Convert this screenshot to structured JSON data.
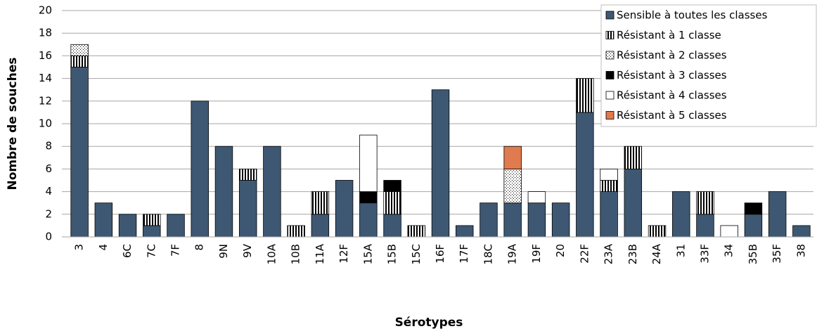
{
  "chart_data": {
    "type": "stacked_bar",
    "x_label": "Sérotypes",
    "y_label": "Nombre de souches",
    "categories": [
      "3",
      "4",
      "6C",
      "7C",
      "7F",
      "8",
      "9N",
      "9V",
      "10A",
      "10B",
      "11A",
      "12F",
      "15A",
      "15B",
      "15C",
      "16F",
      "17F",
      "18C",
      "19A",
      "19F",
      "20",
      "22F",
      "23A",
      "23B",
      "24A",
      "31",
      "33F",
      "34",
      "35B",
      "35F",
      "38"
    ],
    "series": [
      {
        "name": "Sensible à toutes les classes",
        "color": "#3e5873",
        "pattern": "solid",
        "values": [
          15,
          3,
          2,
          1,
          2,
          12,
          8,
          5,
          8,
          0,
          2,
          5,
          3,
          2,
          0,
          13,
          1,
          3,
          3,
          3,
          3,
          11,
          4,
          6,
          0,
          4,
          2,
          0,
          2,
          4,
          1
        ]
      },
      {
        "name": "Résistant à 1 classe",
        "color": "#000000",
        "pattern": "vertical-stripes",
        "values": [
          1,
          0,
          0,
          1,
          0,
          0,
          0,
          1,
          0,
          1,
          2,
          0,
          0,
          2,
          1,
          0,
          0,
          0,
          0,
          0,
          0,
          3,
          1,
          2,
          1,
          0,
          2,
          0,
          0,
          0,
          0
        ]
      },
      {
        "name": "Résistant à 2 classes",
        "color": "#000000",
        "pattern": "dots",
        "values": [
          1,
          0,
          0,
          0,
          0,
          0,
          0,
          0,
          0,
          0,
          0,
          0,
          0,
          0,
          0,
          0,
          0,
          0,
          3,
          0,
          0,
          0,
          0,
          0,
          0,
          0,
          0,
          0,
          0,
          0,
          0
        ]
      },
      {
        "name": "Résistant à 3 classes",
        "color": "#000000",
        "pattern": "solid",
        "values": [
          0,
          0,
          0,
          0,
          0,
          0,
          0,
          0,
          0,
          0,
          0,
          0,
          1,
          1,
          0,
          0,
          0,
          0,
          0,
          0,
          0,
          0,
          0,
          0,
          0,
          0,
          0,
          0,
          1,
          0,
          0
        ]
      },
      {
        "name": "Résistant à 4 classes",
        "color": "#ffffff",
        "pattern": "solid",
        "values": [
          0,
          0,
          0,
          0,
          0,
          0,
          0,
          0,
          0,
          0,
          0,
          0,
          5,
          0,
          0,
          0,
          0,
          0,
          0,
          1,
          0,
          0,
          1,
          0,
          0,
          0,
          0,
          1,
          0,
          0,
          0
        ]
      },
      {
        "name": "Résistant à 5 classes",
        "color": "#e07b4f",
        "pattern": "solid",
        "values": [
          0,
          0,
          0,
          0,
          0,
          0,
          0,
          0,
          0,
          0,
          0,
          0,
          0,
          0,
          0,
          0,
          0,
          0,
          2,
          0,
          0,
          0,
          0,
          0,
          0,
          0,
          0,
          0,
          0,
          0,
          0
        ]
      }
    ],
    "ylim": [
      0,
      20
    ],
    "yticks": [
      0,
      2,
      4,
      6,
      8,
      10,
      12,
      14,
      16,
      18,
      20
    ],
    "grid": true,
    "legend": "upper right"
  }
}
